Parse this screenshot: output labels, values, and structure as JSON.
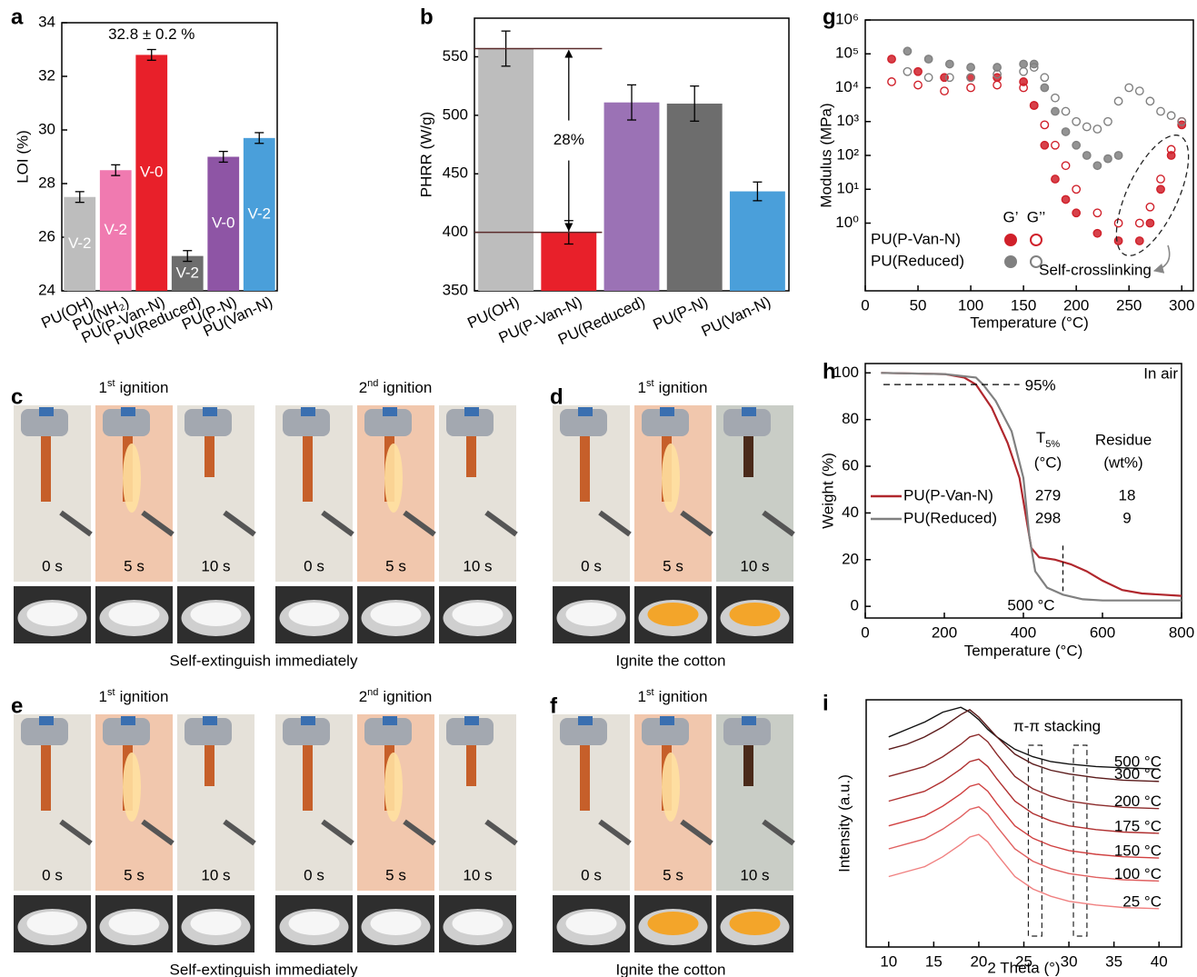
{
  "chart_data": [
    {
      "type": "bar",
      "label": "a",
      "ylabel": "LOI (%)",
      "categories": [
        "PU(OH)",
        "PU(NH₂)",
        "PU(P-Van-N)",
        "PU(Reduced)",
        "PU(P-N)",
        "PU(Van-N)"
      ],
      "values": [
        27.5,
        28.5,
        32.8,
        25.3,
        29.0,
        29.7
      ],
      "errors": [
        0.2,
        0.2,
        0.2,
        0.2,
        0.2,
        0.2
      ],
      "bar_labels": [
        "V-2",
        "V-2",
        "V-0",
        "V-2",
        "V-0",
        "V-2"
      ],
      "colors": [
        "#bdbdbd",
        "#f07ab0",
        "#e8202a",
        "#6d6d6d",
        "#8e55a5",
        "#4a9fda"
      ],
      "peak_label": "32.8 ± 0.2 %",
      "ylim": [
        24,
        34
      ],
      "yticks": [
        24,
        26,
        28,
        30,
        32,
        34
      ]
    },
    {
      "type": "bar",
      "label": "b",
      "ylabel": "PHRR (W/g)",
      "categories": [
        "PU(OH)",
        "PU(P-Van-N)",
        "PU(Reduced)",
        "PU(P-N)",
        "PU(Van-N)"
      ],
      "values": [
        557,
        400,
        511,
        510,
        435
      ],
      "errors": [
        15,
        10,
        15,
        15,
        8
      ],
      "colors": [
        "#bdbdbd",
        "#e8202a",
        "#9b72b5",
        "#6d6d6d",
        "#4a9fda"
      ],
      "drop_label": "28%",
      "ylim": [
        350,
        583
      ],
      "yticks": [
        350,
        400,
        450,
        500,
        550
      ]
    },
    {
      "type": "scatter",
      "label": "g",
      "xlabel": "Temperature (°C)",
      "ylabel": "Modulus (MPa)",
      "log_y": true,
      "legend_columns": [
        "G’",
        "G’’"
      ],
      "legend_rows": [
        "PU(P-Van-N)",
        "PU(Reduced)"
      ],
      "annotation": "Self-crosslinking",
      "series": [
        {
          "row": 0,
          "col": 0,
          "color": "#d0202a",
          "filled": true,
          "x": [
            25,
            50,
            75,
            100,
            125,
            150,
            160,
            170,
            180,
            190,
            200,
            220,
            240,
            260,
            270,
            280,
            290,
            300
          ],
          "values": [
            70000,
            30000,
            20000,
            20000,
            20000,
            15000,
            3000,
            200,
            20,
            5,
            2,
            0.5,
            0.3,
            0.3,
            1,
            10,
            100,
            800
          ]
        },
        {
          "row": 0,
          "col": 1,
          "color": "#d0202a",
          "filled": false,
          "x": [
            25,
            50,
            75,
            100,
            125,
            150,
            160,
            170,
            180,
            190,
            200,
            220,
            240,
            260,
            270,
            280,
            290,
            300
          ],
          "values": [
            15000,
            12000,
            8000,
            10000,
            12000,
            10000,
            3000,
            800,
            200,
            50,
            10,
            2,
            1,
            1,
            3,
            20,
            150,
            1000
          ]
        },
        {
          "row": 1,
          "col": 0,
          "color": "#808080",
          "filled": true,
          "x": [
            40,
            60,
            80,
            100,
            125,
            150,
            160,
            170,
            180,
            190,
            200,
            210,
            220,
            230,
            240
          ],
          "values": [
            120000,
            70000,
            50000,
            40000,
            40000,
            50000,
            50000,
            10000,
            2000,
            500,
            200,
            100,
            50,
            80,
            100
          ]
        },
        {
          "row": 1,
          "col": 1,
          "color": "#808080",
          "filled": false,
          "x": [
            40,
            60,
            80,
            100,
            125,
            150,
            160,
            170,
            180,
            190,
            200,
            210,
            220,
            230,
            240,
            250,
            260,
            270,
            280,
            290,
            300
          ],
          "values": [
            30000,
            20000,
            20000,
            20000,
            25000,
            30000,
            40000,
            20000,
            5000,
            2000,
            1000,
            700,
            600,
            1000,
            4000,
            10000,
            8000,
            4000,
            2000,
            1500,
            1000
          ]
        }
      ],
      "xlim": [
        0,
        311
      ],
      "xticks": [
        0,
        50,
        100,
        150,
        200,
        250,
        300
      ],
      "ylim": [
        0.01,
        1000000
      ],
      "yticks": [
        {
          "value": 1,
          "label": "10⁰"
        },
        {
          "value": 10,
          "label": "10¹"
        },
        {
          "value": 100,
          "label": "10²"
        },
        {
          "value": 1000,
          "label": "10³"
        },
        {
          "value": 10000,
          "label": "10⁴"
        },
        {
          "value": 100000,
          "label": "10⁵"
        },
        {
          "value": 1000000,
          "label": "10⁶"
        }
      ]
    },
    {
      "type": "line",
      "label": "h",
      "xlabel": "Temperature (°C)",
      "ylabel": "Weight (%)",
      "note": "In air",
      "threshold": 95,
      "threshold_label": "95%",
      "marker_x": 500,
      "marker_label": "500 °C",
      "series": [
        {
          "name": "PU(P-Van-N)",
          "color": "#b0272d",
          "x": [
            40,
            200,
            250,
            280,
            320,
            360,
            390,
            410,
            420,
            440,
            480,
            520,
            560,
            600,
            650,
            700,
            800
          ],
          "values": [
            100,
            99.5,
            98,
            95,
            85,
            70,
            55,
            35,
            25,
            21,
            20,
            18,
            15,
            11,
            7,
            5.5,
            4.5
          ]
        },
        {
          "name": "PU(Reduced)",
          "color": "#808080",
          "x": [
            40,
            200,
            280,
            298,
            330,
            370,
            400,
            415,
            430,
            460,
            500,
            550,
            600,
            700,
            800
          ],
          "values": [
            100,
            99.5,
            98,
            95,
            88,
            75,
            55,
            30,
            15,
            8,
            5,
            3,
            2.5,
            2.5,
            2.5
          ]
        }
      ],
      "table": {
        "t_symbol": "T",
        "t_subscript": "5%",
        "t_unit": "(°C)",
        "residue_title": "Residue",
        "residue_unit": "(wt%)",
        "rows": [
          [
            "279",
            "18"
          ],
          [
            "298",
            "9"
          ]
        ]
      },
      "xlim": [
        0,
        800
      ],
      "xticks": [
        0,
        200,
        400,
        600,
        800
      ],
      "ylim": [
        -5,
        104
      ],
      "yticks": [
        0,
        20,
        40,
        60,
        80,
        100
      ]
    },
    {
      "type": "line",
      "label": "i",
      "xlabel": "2 Theta (°)",
      "ylabel": "Intensity (a.u.)",
      "annotation": "π-π stacking",
      "highlight_ranges": [
        [
          25.5,
          27
        ],
        [
          30.5,
          32
        ]
      ],
      "x": [
        10,
        12,
        14,
        16,
        18,
        19,
        20,
        21,
        22,
        24,
        26,
        28,
        30,
        33,
        36,
        40
      ],
      "series": [
        {
          "name": "500 °C",
          "color": "#111111",
          "values": [
            8.5,
            8.8,
            9.1,
            9.5,
            9.7,
            9.5,
            9.2,
            8.8,
            8.5,
            8.0,
            7.7,
            7.5,
            7.4,
            7.3,
            7.25,
            7.2
          ]
        },
        {
          "name": "300 °C",
          "color": "#5a1a1a",
          "values": [
            8.0,
            8.2,
            8.5,
            8.9,
            9.4,
            9.6,
            9.3,
            8.9,
            8.5,
            7.8,
            7.4,
            7.15,
            7.0,
            6.85,
            6.75,
            6.7
          ]
        },
        {
          "name": "200 °C",
          "color": "#8b2a2a",
          "values": [
            6.9,
            7.1,
            7.3,
            7.7,
            8.2,
            8.5,
            8.6,
            8.3,
            7.8,
            6.9,
            6.4,
            6.1,
            5.9,
            5.75,
            5.65,
            5.6
          ]
        },
        {
          "name": "175 °C",
          "color": "#b03030",
          "values": [
            5.9,
            6.1,
            6.3,
            6.7,
            7.2,
            7.5,
            7.6,
            7.3,
            6.8,
            5.9,
            5.4,
            5.1,
            4.9,
            4.75,
            4.65,
            4.6
          ]
        },
        {
          "name": "150 °C",
          "color": "#d04040",
          "values": [
            4.9,
            5.1,
            5.3,
            5.7,
            6.2,
            6.5,
            6.6,
            6.3,
            5.8,
            4.9,
            4.4,
            4.1,
            3.9,
            3.75,
            3.65,
            3.6
          ]
        },
        {
          "name": "100 °C",
          "color": "#e06060",
          "values": [
            3.97,
            4.17,
            4.37,
            4.77,
            5.27,
            5.57,
            5.67,
            5.37,
            4.87,
            3.97,
            3.47,
            3.17,
            2.97,
            2.82,
            2.72,
            2.67
          ]
        },
        {
          "name": "25 °C",
          "color": "#f08080",
          "values": [
            2.85,
            3.05,
            3.25,
            3.65,
            4.15,
            4.45,
            4.55,
            4.25,
            3.75,
            2.85,
            2.35,
            2.05,
            1.85,
            1.7,
            1.6,
            1.55
          ]
        }
      ],
      "xlim": [
        7.5,
        42.5
      ],
      "xticks": [
        10,
        15,
        20,
        25,
        30,
        35,
        40
      ],
      "ylim": [
        0,
        10
      ]
    }
  ],
  "photo_panels": [
    {
      "label": "c",
      "caption": "Self-extinguish immediately",
      "groups": [
        {
          "ordinal": "1",
          "suffix": "st",
          "word": "ignition",
          "frames": [
            "0 s",
            "5 s",
            "10 s"
          ]
        },
        {
          "ordinal": "2",
          "suffix": "nd",
          "word": "ignition",
          "frames": [
            "0 s",
            "5 s",
            "10 s"
          ]
        }
      ]
    },
    {
      "label": "d",
      "caption": "Ignite the cotton",
      "groups": [
        {
          "ordinal": "1",
          "suffix": "st",
          "word": "ignition",
          "frames": [
            "0 s",
            "5 s",
            "10 s"
          ]
        }
      ]
    },
    {
      "label": "e",
      "caption": "Self-extinguish immediately",
      "groups": [
        {
          "ordinal": "1",
          "suffix": "st",
          "word": "ignition",
          "frames": [
            "0 s",
            "5 s",
            "10 s"
          ]
        },
        {
          "ordinal": "2",
          "suffix": "nd",
          "word": "ignition",
          "frames": [
            "0 s",
            "5 s",
            "10 s"
          ]
        }
      ]
    },
    {
      "label": "f",
      "caption": "Ignite the cotton",
      "groups": [
        {
          "ordinal": "1",
          "suffix": "st",
          "word": "ignition",
          "frames": [
            "0 s",
            "5 s",
            "10 s"
          ]
        }
      ]
    }
  ]
}
